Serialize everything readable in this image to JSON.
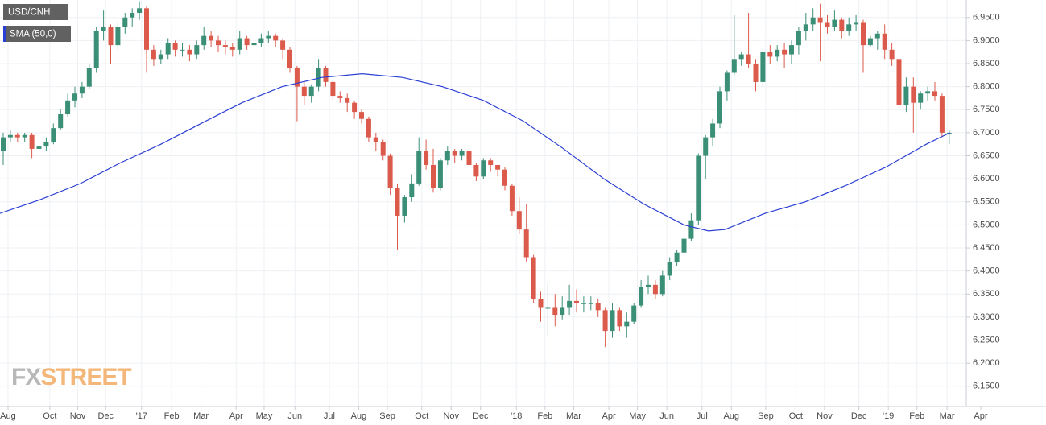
{
  "chart_data": {
    "type": "candlestick",
    "xlim": [
      -0.45,
      140
    ],
    "ylim": [
      6.106,
      6.988
    ],
    "grid": true,
    "xticks": [
      {
        "value": 0.67,
        "label": "Aug"
      },
      {
        "value": 6.5,
        "label": "Oct"
      },
      {
        "value": 10.4,
        "label": "Nov"
      },
      {
        "value": 14.3,
        "label": "Dec"
      },
      {
        "value": 19.3,
        "label": "'17"
      },
      {
        "value": 23.5,
        "label": "Feb"
      },
      {
        "value": 27.6,
        "label": "Mar"
      },
      {
        "value": 32.5,
        "label": "Apr"
      },
      {
        "value": 36.4,
        "label": "May"
      },
      {
        "value": 40.7,
        "label": "Jun"
      },
      {
        "value": 45.5,
        "label": "Jul"
      },
      {
        "value": 49.6,
        "label": "Aug"
      },
      {
        "value": 53.6,
        "label": "Sep"
      },
      {
        "value": 58.4,
        "label": "Oct"
      },
      {
        "value": 62.5,
        "label": "Nov"
      },
      {
        "value": 66.6,
        "label": "Dec"
      },
      {
        "value": 71.6,
        "label": "'18"
      },
      {
        "value": 75.6,
        "label": "Feb"
      },
      {
        "value": 79.6,
        "label": "Mar"
      },
      {
        "value": 84.5,
        "label": "Apr"
      },
      {
        "value": 88.5,
        "label": "May"
      },
      {
        "value": 92.6,
        "label": "Jun"
      },
      {
        "value": 97.5,
        "label": "Jul"
      },
      {
        "value": 101.6,
        "label": "Aug"
      },
      {
        "value": 106.4,
        "label": "Sep"
      },
      {
        "value": 110.6,
        "label": "Oct"
      },
      {
        "value": 114.6,
        "label": "Nov"
      },
      {
        "value": 119.4,
        "label": "Dec"
      },
      {
        "value": 123.5,
        "label": "'19"
      },
      {
        "value": 127.5,
        "label": "Feb"
      },
      {
        "value": 131.7,
        "label": "Mar"
      },
      {
        "value": 136.4,
        "label": "Apr"
      }
    ],
    "yticks": [
      {
        "value": 6.95,
        "label": "6.9500"
      },
      {
        "value": 6.9,
        "label": "6.9000"
      },
      {
        "value": 6.85,
        "label": "6.8500"
      },
      {
        "value": 6.8,
        "label": "6.8000"
      },
      {
        "value": 6.75,
        "label": "6.7500"
      },
      {
        "value": 6.7,
        "label": "6.7000"
      },
      {
        "value": 6.65,
        "label": "6.6500"
      },
      {
        "value": 6.6,
        "label": "6.6000"
      },
      {
        "value": 6.55,
        "label": "6.5500"
      },
      {
        "value": 6.5,
        "label": "6.5000"
      },
      {
        "value": 6.45,
        "label": "6.4500"
      },
      {
        "value": 6.4,
        "label": "6.4000"
      },
      {
        "value": 6.35,
        "label": "6.3500"
      },
      {
        "value": 6.3,
        "label": "6.3000"
      },
      {
        "value": 6.25,
        "label": "6.2500"
      },
      {
        "value": 6.2,
        "label": "6.2000"
      },
      {
        "value": 6.15,
        "label": "6.1500"
      }
    ],
    "watermark": [
      "FX",
      "STREET"
    ],
    "series": [
      {
        "name": "USD/CNH",
        "type": "candlestick",
        "up_color": "#3a8f76",
        "down_color": "#dc5a4b",
        "x": [
          0,
          1,
          2,
          3,
          4,
          5,
          6,
          7,
          8,
          9,
          10,
          11,
          12,
          13,
          14,
          15,
          16,
          17,
          18,
          19,
          20,
          21,
          22,
          23,
          24,
          25,
          26,
          27,
          28,
          29,
          30,
          31,
          32,
          33,
          34,
          35,
          36,
          37,
          38,
          39,
          40,
          41,
          42,
          43,
          44,
          45,
          46,
          47,
          48,
          49,
          50,
          51,
          52,
          53,
          54,
          55,
          56,
          57,
          58,
          59,
          60,
          61,
          62,
          63,
          64,
          65,
          66,
          67,
          68,
          69,
          70,
          71,
          72,
          73,
          74,
          75,
          76,
          77,
          78,
          79,
          80,
          81,
          82,
          83,
          84,
          85,
          86,
          87,
          88,
          89,
          90,
          91,
          92,
          93,
          94,
          95,
          96,
          97,
          98,
          99,
          100,
          101,
          102,
          103,
          104,
          105,
          106,
          107,
          108,
          109,
          110,
          111,
          112,
          113,
          114,
          115,
          116,
          117,
          118,
          119,
          120,
          121,
          122,
          123,
          124,
          125,
          126,
          127,
          128,
          129,
          130,
          131,
          132
        ],
        "open": [
          6.66,
          6.69,
          6.695,
          6.69,
          6.695,
          6.665,
          6.67,
          6.68,
          6.71,
          6.74,
          6.77,
          6.785,
          6.8,
          6.84,
          6.92,
          6.93,
          6.89,
          6.93,
          6.95,
          6.96,
          6.97,
          6.88,
          6.86,
          6.87,
          6.895,
          6.88,
          6.88,
          6.87,
          6.89,
          6.91,
          6.9,
          6.89,
          6.885,
          6.88,
          6.905,
          6.89,
          6.895,
          6.905,
          6.91,
          6.9,
          6.88,
          6.84,
          6.8,
          6.78,
          6.8,
          6.84,
          6.81,
          6.78,
          6.775,
          6.765,
          6.745,
          6.73,
          6.69,
          6.68,
          6.65,
          6.58,
          6.52,
          6.56,
          6.59,
          6.66,
          6.63,
          6.58,
          6.64,
          6.66,
          6.65,
          6.66,
          6.63,
          6.605,
          6.64,
          6.63,
          6.62,
          6.585,
          6.53,
          6.49,
          6.43,
          6.34,
          6.32,
          6.32,
          6.305,
          6.32,
          6.335,
          6.33,
          6.33,
          6.33,
          6.315,
          6.27,
          6.315,
          6.28,
          6.29,
          6.325,
          6.365,
          6.37,
          6.35,
          6.39,
          6.42,
          6.44,
          6.47,
          6.51,
          6.65,
          6.69,
          6.72,
          6.79,
          6.83,
          6.86,
          6.87,
          6.85,
          6.81,
          6.875,
          6.865,
          6.88,
          6.87,
          6.89,
          6.92,
          6.935,
          6.95,
          6.94,
          6.93,
          6.945,
          6.92,
          6.935,
          6.94,
          6.89,
          6.905,
          6.915,
          6.88,
          6.86,
          6.76,
          6.8,
          6.765,
          6.785,
          6.79,
          6.78,
          6.7
        ],
        "high": [
          6.7,
          6.705,
          6.7,
          6.7,
          6.7,
          6.68,
          6.69,
          6.72,
          6.75,
          6.785,
          6.8,
          6.81,
          6.85,
          6.93,
          6.965,
          6.935,
          6.94,
          6.96,
          6.97,
          6.985,
          6.975,
          6.89,
          6.88,
          6.905,
          6.9,
          6.895,
          6.89,
          6.9,
          6.93,
          6.92,
          6.91,
          6.9,
          6.895,
          6.92,
          6.91,
          6.905,
          6.915,
          6.92,
          6.915,
          6.905,
          6.885,
          6.845,
          6.81,
          6.805,
          6.86,
          6.845,
          6.815,
          6.79,
          6.785,
          6.77,
          6.75,
          6.735,
          6.7,
          6.685,
          6.655,
          6.59,
          6.565,
          6.61,
          6.69,
          6.685,
          6.665,
          6.645,
          6.67,
          6.665,
          6.665,
          6.665,
          6.635,
          6.645,
          6.645,
          6.63,
          6.625,
          6.59,
          6.56,
          6.545,
          6.435,
          6.355,
          6.375,
          6.35,
          6.345,
          6.37,
          6.36,
          6.345,
          6.345,
          6.34,
          6.32,
          6.33,
          6.32,
          6.31,
          6.33,
          6.38,
          6.39,
          6.38,
          6.4,
          6.43,
          6.445,
          6.48,
          6.525,
          6.655,
          6.695,
          6.73,
          6.8,
          6.835,
          6.955,
          6.875,
          6.96,
          6.86,
          6.88,
          6.89,
          6.89,
          6.895,
          6.9,
          6.93,
          6.96,
          6.97,
          6.98,
          6.955,
          6.965,
          6.95,
          6.95,
          6.955,
          6.945,
          6.91,
          6.92,
          6.935,
          6.895,
          6.865,
          6.82,
          6.82,
          6.79,
          6.8,
          6.81,
          6.785,
          6.705
        ],
        "low": [
          6.63,
          6.68,
          6.68,
          6.68,
          6.645,
          6.655,
          6.66,
          6.675,
          6.705,
          6.735,
          6.755,
          6.775,
          6.795,
          6.83,
          6.9,
          6.85,
          6.88,
          6.915,
          6.93,
          6.945,
          6.83,
          6.845,
          6.85,
          6.86,
          6.865,
          6.865,
          6.855,
          6.86,
          6.88,
          6.885,
          6.875,
          6.87,
          6.865,
          6.87,
          6.88,
          6.88,
          6.885,
          6.895,
          6.885,
          6.86,
          6.83,
          6.725,
          6.76,
          6.765,
          6.79,
          6.8,
          6.77,
          6.765,
          6.745,
          6.73,
          6.72,
          6.68,
          6.66,
          6.64,
          6.565,
          6.445,
          6.505,
          6.55,
          6.585,
          6.62,
          6.57,
          6.575,
          6.63,
          6.635,
          6.64,
          6.62,
          6.595,
          6.6,
          6.615,
          6.605,
          6.575,
          6.52,
          6.48,
          6.42,
          6.33,
          6.29,
          6.26,
          6.28,
          6.295,
          6.305,
          6.31,
          6.31,
          6.315,
          6.3,
          6.235,
          6.255,
          6.27,
          6.255,
          6.285,
          6.32,
          6.35,
          6.34,
          6.345,
          6.38,
          6.41,
          6.43,
          6.465,
          6.5,
          6.6,
          6.67,
          6.71,
          6.77,
          6.825,
          6.845,
          6.84,
          6.79,
          6.8,
          6.85,
          6.855,
          6.84,
          6.85,
          6.87,
          6.9,
          6.92,
          6.855,
          6.915,
          6.92,
          6.905,
          6.91,
          6.92,
          6.83,
          6.885,
          6.88,
          6.86,
          6.845,
          6.74,
          6.745,
          6.7,
          6.75,
          6.77,
          6.77,
          6.69,
          6.675
        ],
        "close": [
          6.69,
          6.695,
          6.69,
          6.695,
          6.665,
          6.67,
          6.68,
          6.71,
          6.74,
          6.77,
          6.785,
          6.8,
          6.84,
          6.92,
          6.93,
          6.89,
          6.93,
          6.95,
          6.96,
          6.97,
          6.88,
          6.86,
          6.87,
          6.895,
          6.88,
          6.88,
          6.87,
          6.89,
          6.91,
          6.9,
          6.89,
          6.885,
          6.88,
          6.905,
          6.89,
          6.895,
          6.905,
          6.91,
          6.9,
          6.88,
          6.84,
          6.8,
          6.78,
          6.8,
          6.84,
          6.81,
          6.78,
          6.775,
          6.765,
          6.745,
          6.73,
          6.69,
          6.68,
          6.65,
          6.58,
          6.52,
          6.56,
          6.59,
          6.66,
          6.63,
          6.58,
          6.64,
          6.66,
          6.65,
          6.66,
          6.63,
          6.605,
          6.64,
          6.63,
          6.62,
          6.585,
          6.53,
          6.49,
          6.43,
          6.34,
          6.32,
          6.32,
          6.305,
          6.32,
          6.335,
          6.33,
          6.33,
          6.33,
          6.315,
          6.27,
          6.315,
          6.28,
          6.29,
          6.325,
          6.365,
          6.37,
          6.35,
          6.39,
          6.42,
          6.44,
          6.47,
          6.51,
          6.65,
          6.69,
          6.72,
          6.79,
          6.83,
          6.86,
          6.87,
          6.85,
          6.81,
          6.875,
          6.865,
          6.88,
          6.87,
          6.89,
          6.92,
          6.935,
          6.95,
          6.94,
          6.93,
          6.945,
          6.92,
          6.935,
          6.94,
          6.89,
          6.905,
          6.915,
          6.88,
          6.86,
          6.76,
          6.8,
          6.765,
          6.785,
          6.79,
          6.78,
          6.7,
          6.7
        ]
      },
      {
        "name": "SMA (50,0)",
        "type": "line",
        "color": "#2b3fd4",
        "x": [
          -0.45,
          5.2,
          10.8,
          16.4,
          22,
          27.6,
          33.3,
          38.9,
          44.5,
          50.1,
          55.7,
          61.3,
          67,
          72.6,
          78.2,
          83.8,
          89.4,
          95,
          98.4,
          100.7,
          106.3,
          111.9,
          117.5,
          123.1,
          128.8,
          132.1
        ],
        "values": [
          6.525,
          6.555,
          6.59,
          6.635,
          6.675,
          6.72,
          6.765,
          6.8,
          6.82,
          6.828,
          6.82,
          6.8,
          6.77,
          6.725,
          6.665,
          6.6,
          6.545,
          6.5,
          6.487,
          6.49,
          6.525,
          6.55,
          6.585,
          6.625,
          6.675,
          6.7
        ]
      }
    ]
  }
}
